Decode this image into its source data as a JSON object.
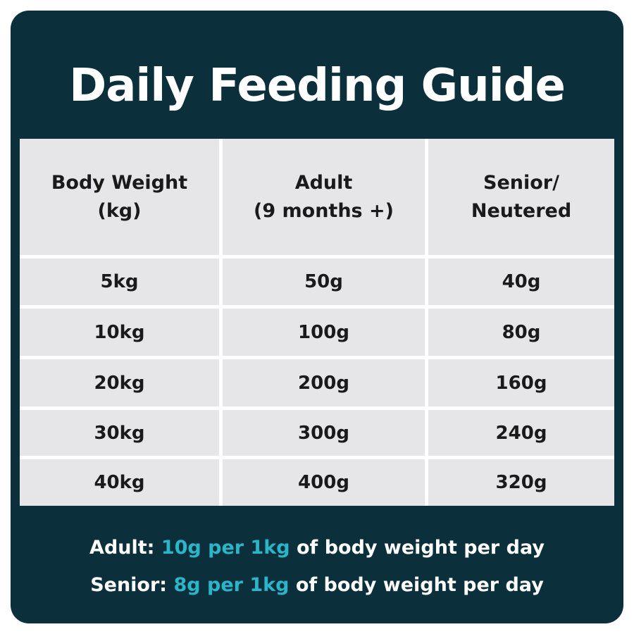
{
  "title": "Daily Feeding Guide",
  "table": {
    "header": [
      [
        "Body Weight",
        "(kg)"
      ],
      [
        "Adult",
        "(9 months +)"
      ],
      [
        "Senior/",
        "Neutered"
      ]
    ],
    "rows": [
      [
        "5kg",
        "50g",
        "40g"
      ],
      [
        "10kg",
        "100g",
        "80g"
      ],
      [
        "20kg",
        "200g",
        "160g"
      ],
      [
        "30kg",
        "300g",
        "240g"
      ],
      [
        "40kg",
        "400g",
        "320g"
      ]
    ]
  },
  "notes": [
    {
      "label": "Adult:",
      "highlight": "10g per 1kg",
      "rest": "of body weight per day"
    },
    {
      "label": "Senior:",
      "highlight": "8g per 1kg",
      "rest": "of body weight per day"
    }
  ]
}
